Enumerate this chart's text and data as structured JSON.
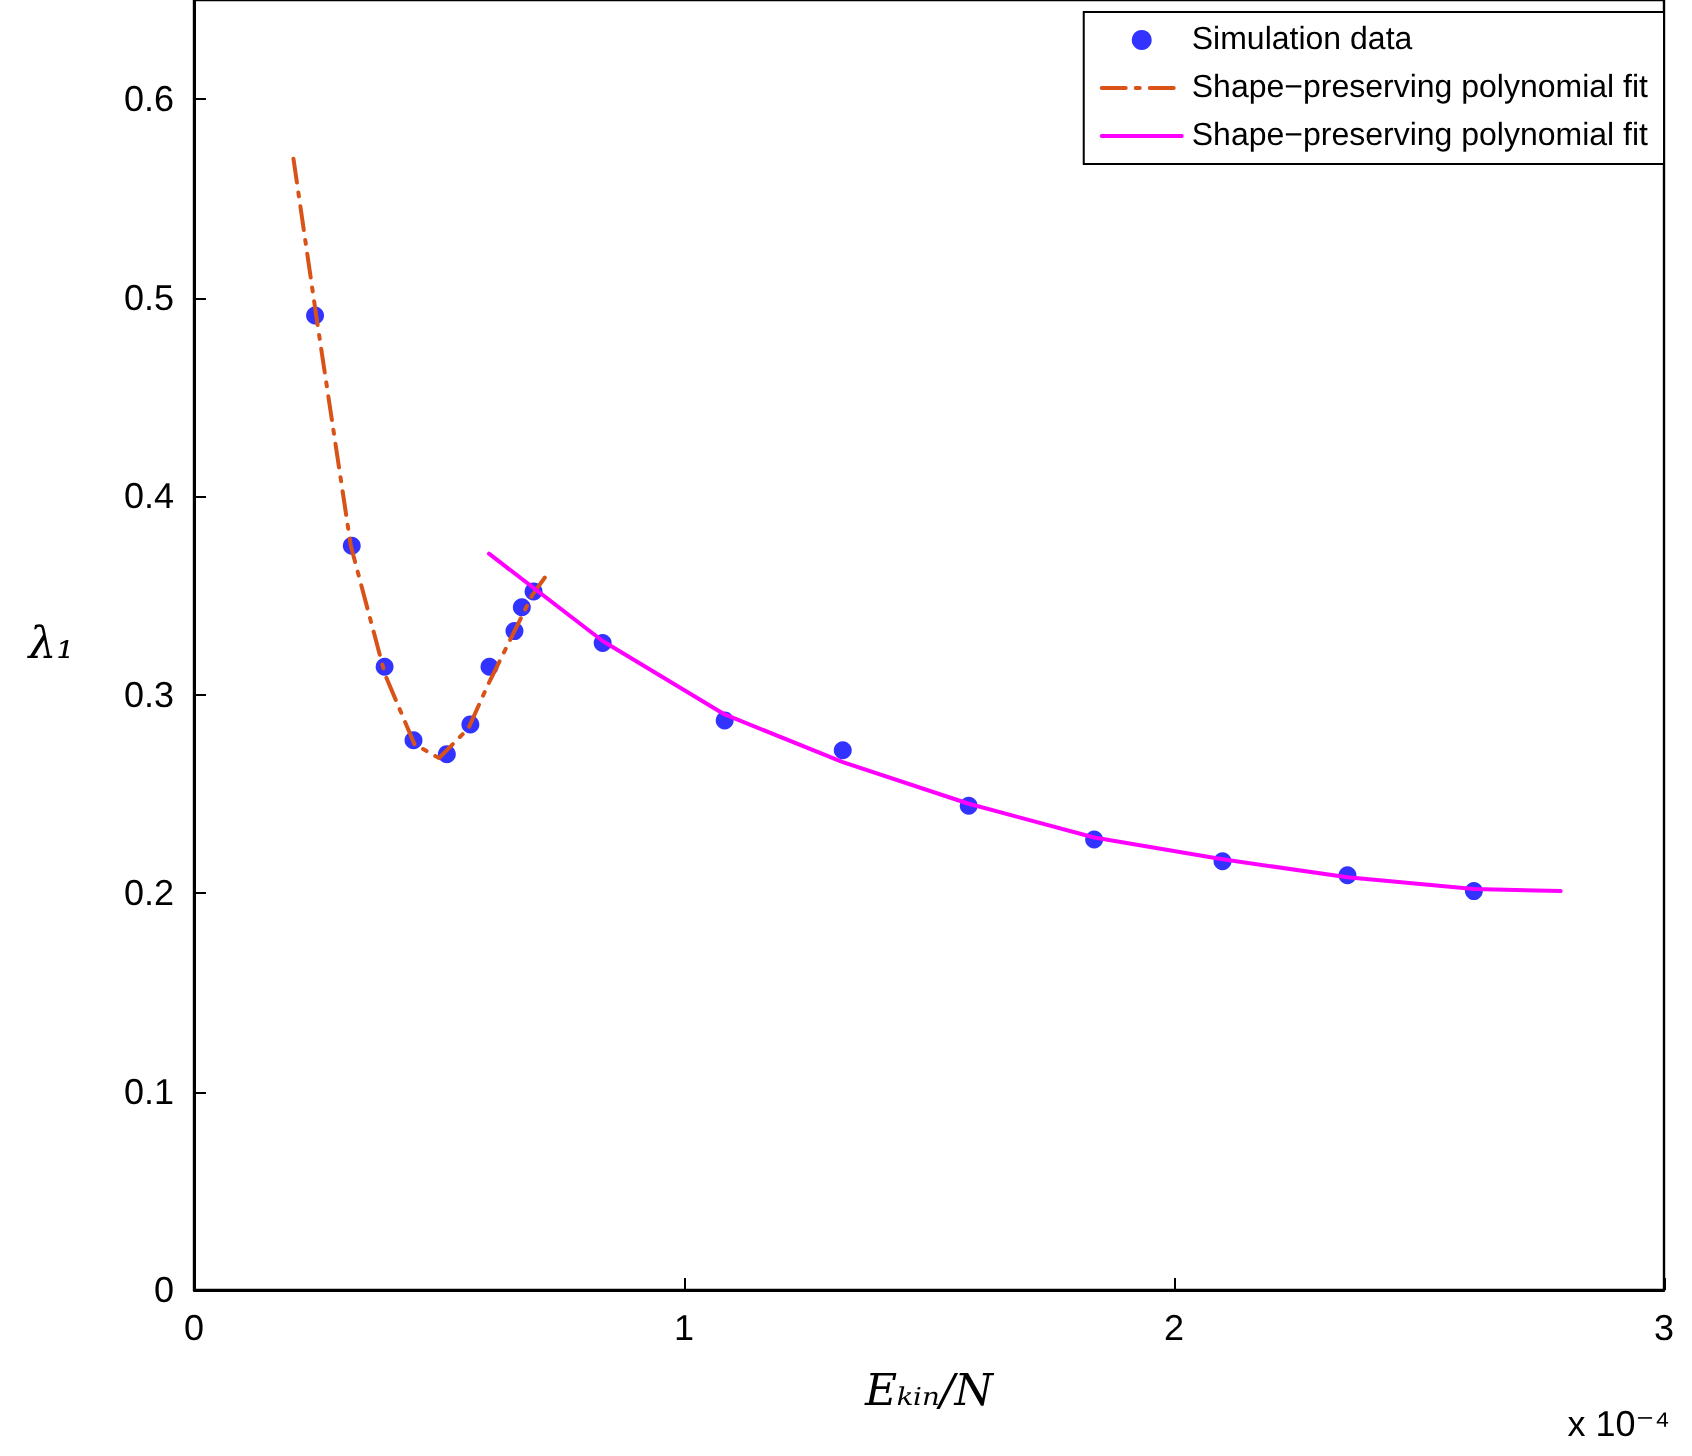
{
  "chart_data": {
    "type": "line",
    "xlabel": "Eₖᵢₙ/N",
    "ylabel": "λ₁",
    "annotations": [
      "x 10⁻⁴"
    ],
    "xlim": [
      0,
      3
    ],
    "xticks": [
      0,
      1,
      2,
      3
    ],
    "ylim": [
      0,
      0.65
    ],
    "yticks": [
      0,
      0.1,
      0.2,
      0.3,
      0.4,
      0.5,
      0.6
    ],
    "grid": false,
    "legend": "top right",
    "series": [
      {
        "name": "Simulation data",
        "type": "scatter",
        "color": "#0000ff",
        "marker": "circle",
        "x": [
          0.247,
          0.322,
          0.389,
          0.448,
          0.516,
          0.564,
          0.603,
          0.654,
          0.669,
          0.693,
          0.834,
          1.083,
          1.324,
          1.581,
          1.837,
          2.099,
          2.354,
          2.612
        ],
        "values": [
          0.491,
          0.375,
          0.314,
          0.277,
          0.27,
          0.285,
          0.314,
          0.332,
          0.344,
          0.352,
          0.326,
          0.287,
          0.272,
          0.244,
          0.227,
          0.216,
          0.209,
          0.201
        ]
      },
      {
        "name": "Shape−preserving polynomial fit",
        "color": "#d95319",
        "line_style": "dashed",
        "marker": "none",
        "x": [
          0.203,
          0.25,
          0.32,
          0.39,
          0.45,
          0.5,
          0.56,
          0.6,
          0.65,
          0.69,
          0.716
        ],
        "values": [
          0.57,
          0.49,
          0.375,
          0.31,
          0.275,
          0.268,
          0.283,
          0.305,
          0.33,
          0.35,
          0.359
        ]
      },
      {
        "name": "Shape−preserving polynomial fit",
        "color": "#ff00ff",
        "line_style": "solid",
        "marker": "none",
        "x": [
          0.602,
          0.834,
          1.083,
          1.324,
          1.581,
          1.837,
          2.099,
          2.354,
          2.612,
          2.789
        ],
        "values": [
          0.371,
          0.327,
          0.29,
          0.266,
          0.245,
          0.228,
          0.217,
          0.208,
          0.202,
          0.201
        ]
      }
    ]
  }
}
